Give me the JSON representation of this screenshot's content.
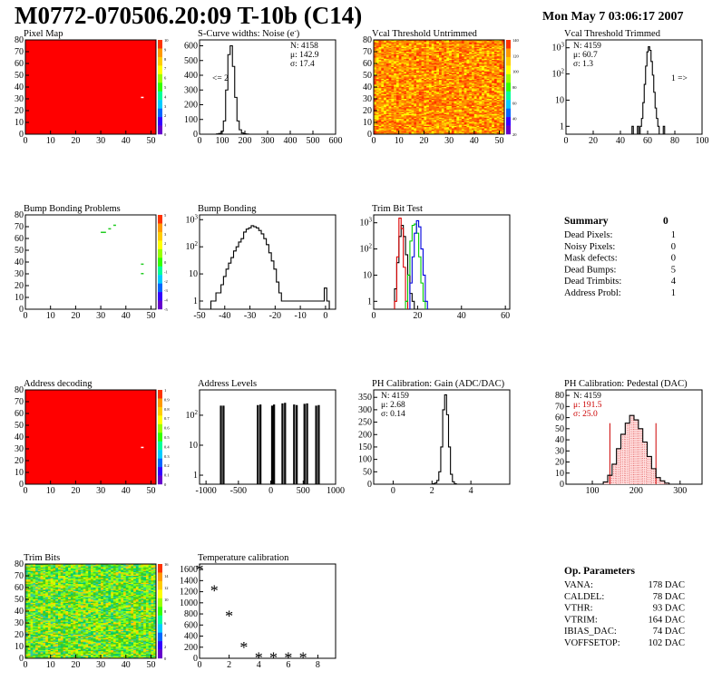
{
  "header": {
    "title": "M0772-070506.20:09 T-10b (C14)",
    "date": "Mon May  7 03:06:17 2007"
  },
  "colors": {
    "panel_fill": "#ff0000",
    "hist_line": "#000000",
    "trim_red": "#dd0000",
    "trim_green": "#00cc00",
    "trim_blue": "#0000dd",
    "pedestal_red": "#cc0000",
    "bump_marker": "#22cc22"
  },
  "charts": [
    {
      "id": "pixel-map",
      "type": "heatmap",
      "title": "Pixel Map",
      "fill": "uniform-red",
      "x_ticks": [
        "0",
        "10",
        "20",
        "30",
        "40",
        "50"
      ],
      "y_ticks": [
        "0",
        "10",
        "20",
        "30",
        "40",
        "50",
        "60",
        "70",
        "80"
      ],
      "scale_ticks": [
        "0",
        "1",
        "2",
        "3",
        "4",
        "5",
        "6",
        "7",
        "8",
        "9",
        "10"
      ],
      "xlim": [
        0,
        52
      ],
      "ylim": [
        0,
        80
      ],
      "spots": [
        {
          "x": 46,
          "y": 31,
          "color": "#ffffff"
        }
      ]
    },
    {
      "id": "scurve-noise",
      "type": "histogram",
      "title": "S-Curve widths: Noise (e",
      "title_sup": "-",
      "title_end": ")",
      "scale": "linear",
      "x_ticks": [
        "0",
        "100",
        "200",
        "300",
        "400",
        "500",
        "600"
      ],
      "y_ticks": [
        "0",
        "100",
        "200",
        "300",
        "400",
        "500",
        "600"
      ],
      "xlim": [
        0,
        600
      ],
      "ylim": [
        0,
        640
      ],
      "stats": [
        "N: 4158",
        "μ: 142.9",
        "σ: 17.4"
      ],
      "note_left": "<= 2",
      "x": [
        80,
        90,
        100,
        110,
        120,
        130,
        140,
        150,
        160,
        170,
        180,
        190,
        200,
        210,
        220
      ],
      "values": [
        2,
        5,
        20,
        90,
        300,
        540,
        600,
        460,
        250,
        90,
        30,
        8,
        3,
        1,
        0
      ]
    },
    {
      "id": "vcal-untrimmed",
      "type": "heatmap",
      "title": "Vcal Threshold Untrimmed",
      "fill": "noisy-warm",
      "x_ticks": [
        "0",
        "10",
        "20",
        "30",
        "40",
        "50"
      ],
      "y_ticks": [
        "0",
        "10",
        "20",
        "30",
        "40",
        "50",
        "60",
        "70",
        "80"
      ],
      "scale_ticks": [
        "20",
        "40",
        "60",
        "80",
        "100",
        "120",
        "140"
      ],
      "xlim": [
        0,
        52
      ],
      "ylim": [
        0,
        80
      ]
    },
    {
      "id": "vcal-trimmed",
      "type": "histogram",
      "title": "Vcal Threshold Trimmed",
      "scale": "log",
      "x_ticks": [
        "0",
        "20",
        "40",
        "60",
        "80",
        "100"
      ],
      "y_ticks": [
        "1",
        "10",
        "10²",
        "10³"
      ],
      "xlim": [
        0,
        100
      ],
      "ylim": [
        0.5,
        2000
      ],
      "stats": [
        "N: 4159",
        "μ: 60.7",
        "σ:  1.3"
      ],
      "note_right": "1 =>",
      "x": [
        49,
        50,
        51,
        52,
        53,
        54,
        55,
        56,
        57,
        58,
        59,
        60,
        61,
        62,
        63,
        64,
        65,
        66,
        67,
        68,
        69,
        70,
        71,
        72
      ],
      "values": [
        1,
        0,
        0,
        0,
        1,
        0,
        1,
        2,
        8,
        40,
        200,
        700,
        1100,
        800,
        300,
        90,
        20,
        5,
        2,
        1,
        0,
        0,
        0,
        1
      ]
    },
    {
      "id": "bump-problems",
      "type": "heatmap",
      "title": "Bump Bonding Problems",
      "fill": "white",
      "x_ticks": [
        "0",
        "10",
        "20",
        "30",
        "40",
        "50"
      ],
      "y_ticks": [
        "0",
        "10",
        "20",
        "30",
        "40",
        "50",
        "60",
        "70",
        "80"
      ],
      "scale_ticks": [
        "-5",
        "-4",
        "-3",
        "-2",
        "-1",
        "0",
        "1",
        "2",
        "3",
        "4",
        "5"
      ],
      "xlim": [
        0,
        52
      ],
      "ylim": [
        0,
        80
      ],
      "spots": [
        {
          "x": 30,
          "y": 65,
          "color": "#22cc22"
        },
        {
          "x": 31,
          "y": 65,
          "color": "#22cc22"
        },
        {
          "x": 33,
          "y": 68,
          "color": "#22cc22"
        },
        {
          "x": 35,
          "y": 71,
          "color": "#22cc22"
        },
        {
          "x": 46,
          "y": 38,
          "color": "#22cc22"
        },
        {
          "x": 46,
          "y": 30,
          "color": "#22cc22"
        }
      ]
    },
    {
      "id": "bump-bonding",
      "type": "histogram",
      "title": "Bump Bonding",
      "scale": "log",
      "x_ticks": [
        "-50",
        "-40",
        "-30",
        "-20",
        "-10",
        "0"
      ],
      "y_ticks": [
        "1",
        "10",
        "10²",
        "10³"
      ],
      "xlim": [
        -50,
        4
      ],
      "ylim": [
        0.5,
        1500
      ],
      "x": [
        -45,
        -44,
        -43,
        -42,
        -41,
        -40,
        -39,
        -38,
        -37,
        -36,
        -35,
        -34,
        -33,
        -32,
        -31,
        -30,
        -29,
        -28,
        -27,
        -26,
        -25,
        -24,
        -23,
        -22,
        -21,
        -20,
        -19,
        -18,
        -17,
        -1,
        0,
        1
      ],
      "values": [
        1,
        1,
        2,
        2,
        4,
        8,
        15,
        25,
        40,
        70,
        100,
        150,
        200,
        350,
        450,
        500,
        600,
        550,
        500,
        400,
        300,
        200,
        120,
        60,
        30,
        15,
        5,
        2,
        1,
        1,
        3,
        1
      ]
    },
    {
      "id": "trim-bit-test",
      "type": "histogram",
      "title": "Trim Bit Test",
      "scale": "log",
      "x_ticks": [
        "0",
        "20",
        "40",
        "60"
      ],
      "y_ticks": [
        "1",
        "10",
        "10²",
        "10³"
      ],
      "xlim": [
        0,
        62
      ],
      "ylim": [
        0.5,
        2000
      ],
      "series": [
        {
          "color": "#000000",
          "x": [
            10,
            11,
            12,
            13,
            14,
            15,
            16,
            17,
            18
          ],
          "values": [
            3,
            30,
            300,
            800,
            300,
            60,
            10,
            2,
            1
          ]
        },
        {
          "color": "#dd0000",
          "x": [
            10,
            11,
            12,
            13,
            14,
            15
          ],
          "values": [
            1,
            50,
            1500,
            600,
            20,
            1
          ]
        },
        {
          "color": "#00cc00",
          "x": [
            15,
            16,
            17,
            18,
            19,
            20,
            21,
            22,
            23
          ],
          "values": [
            1,
            10,
            200,
            800,
            900,
            400,
            50,
            5,
            1
          ]
        },
        {
          "color": "#0000dd",
          "x": [
            17,
            18,
            19,
            20,
            21,
            22,
            23,
            24
          ],
          "values": [
            5,
            50,
            400,
            1200,
            700,
            100,
            10,
            1
          ]
        }
      ]
    },
    {
      "id": "address-decoding",
      "type": "heatmap",
      "title": "Address decoding",
      "fill": "uniform-red",
      "x_ticks": [
        "0",
        "10",
        "20",
        "30",
        "40",
        "50"
      ],
      "y_ticks": [
        "0",
        "10",
        "20",
        "30",
        "40",
        "50",
        "60",
        "70",
        "80"
      ],
      "scale_ticks": [
        "0",
        "0.1",
        "0.2",
        "0.3",
        "0.4",
        "0.5",
        "0.6",
        "0.7",
        "0.8",
        "0.9",
        "1"
      ],
      "xlim": [
        0,
        52
      ],
      "ylim": [
        0,
        80
      ],
      "spots": [
        {
          "x": 46,
          "y": 31,
          "color": "#ffffff"
        }
      ]
    },
    {
      "id": "address-levels",
      "type": "spikes",
      "title": "Address Levels",
      "scale": "log",
      "x_ticks": [
        "-1000",
        "-500",
        "0",
        "500",
        "1000"
      ],
      "y_ticks": [
        "1",
        "10",
        "10²"
      ],
      "xlim": [
        -1100,
        1000
      ],
      "ylim": [
        0.5,
        700
      ],
      "x": [
        -770,
        -730,
        -200,
        -160,
        20,
        50,
        180,
        220,
        360,
        400,
        520,
        560,
        700,
        740
      ],
      "values": [
        200,
        200,
        210,
        220,
        200,
        220,
        240,
        250,
        220,
        210,
        230,
        240,
        200,
        210
      ]
    },
    {
      "id": "ph-gain",
      "type": "histogram",
      "title": "PH Calibration: Gain (ADC/DAC)",
      "scale": "linear",
      "x_ticks": [
        "0",
        "2",
        "4"
      ],
      "y_ticks": [
        "0",
        "50",
        "100",
        "150",
        "200",
        "250",
        "300",
        "350"
      ],
      "xlim": [
        -1,
        6
      ],
      "ylim": [
        0,
        380
      ],
      "stats": [
        "N: 4159",
        "μ: 2.68",
        "σ: 0.14"
      ],
      "x": [
        2.1,
        2.2,
        2.3,
        2.4,
        2.5,
        2.6,
        2.7,
        2.8,
        2.9,
        3.0,
        3.1,
        3.2
      ],
      "values": [
        2,
        5,
        15,
        50,
        150,
        300,
        360,
        280,
        150,
        40,
        10,
        2
      ]
    },
    {
      "id": "ph-pedestal",
      "type": "histogram",
      "title": "PH Calibration: Pedestal (DAC)",
      "scale": "linear",
      "x_ticks": [
        "100",
        "200",
        "300"
      ],
      "y_ticks": [
        "0",
        "10",
        "20",
        "30",
        "40",
        "50",
        "60",
        "70",
        "80"
      ],
      "xlim": [
        40,
        350
      ],
      "ylim": [
        0,
        85
      ],
      "stats": [
        "N: 4159",
        "μ: 191.5",
        "σ: 25.0"
      ],
      "stats_colors": [
        "#000000",
        "#cc0000",
        "#cc0000"
      ],
      "markers": [
        140,
        245
      ],
      "x": [
        130,
        140,
        150,
        160,
        170,
        180,
        190,
        200,
        210,
        220,
        230,
        240,
        250,
        260,
        270
      ],
      "values": [
        2,
        8,
        18,
        32,
        45,
        55,
        62,
        58,
        50,
        38,
        25,
        14,
        6,
        3,
        1
      ]
    },
    {
      "id": "trim-bits",
      "type": "heatmap",
      "title": "Trim Bits",
      "fill": "noisy-cool",
      "x_ticks": [
        "0",
        "10",
        "20",
        "30",
        "40",
        "50"
      ],
      "y_ticks": [
        "0",
        "10",
        "20",
        "30",
        "40",
        "50",
        "60",
        "70",
        "80"
      ],
      "scale_ticks": [
        "0",
        "2",
        "4",
        "6",
        "8",
        "10",
        "12",
        "14",
        "16"
      ],
      "xlim": [
        0,
        52
      ],
      "ylim": [
        0,
        80
      ]
    },
    {
      "id": "temperature-calibration",
      "type": "scatter",
      "title": "Temperature calibration",
      "scale": "linear",
      "x_ticks": [
        "0",
        "2",
        "4",
        "6",
        "8"
      ],
      "y_ticks": [
        "0",
        "200",
        "400",
        "600",
        "800",
        "1000",
        "1200",
        "1400",
        "1600"
      ],
      "xlim": [
        0,
        9.2
      ],
      "ylim": [
        0,
        1700
      ],
      "x": [
        0,
        1,
        2,
        3,
        4,
        5,
        6,
        7
      ],
      "values": [
        1590,
        1220,
        760,
        200,
        10,
        10,
        10,
        10
      ]
    }
  ],
  "summary": {
    "title": "Summary",
    "count": "0",
    "rows": [
      {
        "label": "Dead Pixels:",
        "value": "1"
      },
      {
        "label": "Noisy Pixels:",
        "value": "0"
      },
      {
        "label": "Mask defects:",
        "value": "0"
      },
      {
        "label": "Dead Bumps:",
        "value": "5"
      },
      {
        "label": "Dead Trimbits:",
        "value": "4"
      },
      {
        "label": "Address Probl:",
        "value": "1"
      }
    ]
  },
  "op_params": {
    "title": "Op. Parameters",
    "rows": [
      {
        "label": "VANA:",
        "value": "178 DAC"
      },
      {
        "label": "CALDEL:",
        "value": "78 DAC"
      },
      {
        "label": "VTHR:",
        "value": "93 DAC"
      },
      {
        "label": "VTRIM:",
        "value": "164 DAC"
      },
      {
        "label": "IBIAS_DAC:",
        "value": "74 DAC"
      },
      {
        "label": "VOFFSETOP:",
        "value": "102 DAC"
      }
    ]
  }
}
